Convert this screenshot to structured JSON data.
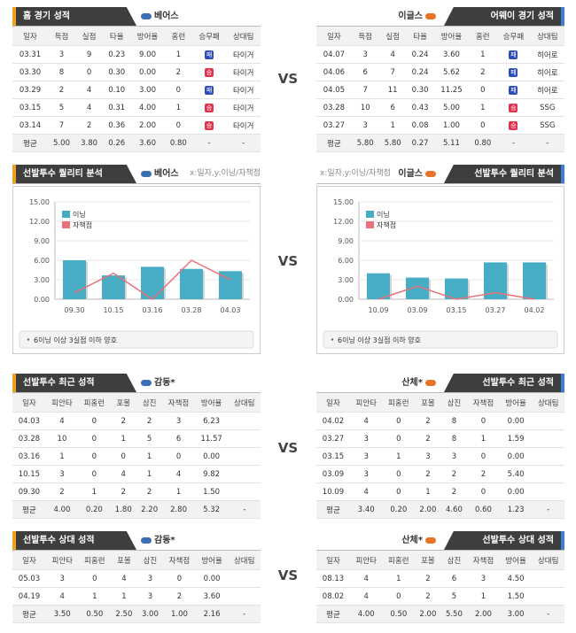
{
  "sections": [
    {
      "vs": "VS",
      "left": {
        "title": "홈 경기 성적",
        "team": "베어스",
        "columns": [
          "일자",
          "득점",
          "실점",
          "타율",
          "방어율",
          "홈런",
          "승무패",
          "상대팀"
        ],
        "rows": [
          [
            "03.31",
            "3",
            "9",
            "0.23",
            "9.00",
            "1",
            "패",
            "타이거"
          ],
          [
            "03.30",
            "8",
            "0",
            "0.30",
            "0.00",
            "2",
            "승",
            "타이거"
          ],
          [
            "03.29",
            "2",
            "4",
            "0.10",
            "3.00",
            "0",
            "패",
            "타이거"
          ],
          [
            "03.15",
            "5",
            "4",
            "0.31",
            "4.00",
            "1",
            "승",
            "타이거"
          ],
          [
            "03.14",
            "7",
            "2",
            "0.36",
            "2.00",
            "0",
            "승",
            "타이거"
          ]
        ],
        "average": [
          "평균",
          "5.00",
          "3.80",
          "0.26",
          "3.60",
          "0.80",
          "-",
          "-"
        ]
      },
      "right": {
        "title": "어웨이 경기 성적",
        "team": "이글스",
        "columns": [
          "일자",
          "득점",
          "실점",
          "타율",
          "방어율",
          "홈런",
          "승무패",
          "상대팀"
        ],
        "rows": [
          [
            "04.07",
            "3",
            "4",
            "0.24",
            "3.60",
            "1",
            "패",
            "히어로"
          ],
          [
            "04.06",
            "6",
            "7",
            "0.24",
            "5.62",
            "2",
            "패",
            "히어로"
          ],
          [
            "04.05",
            "7",
            "11",
            "0.30",
            "11.25",
            "0",
            "패",
            "히어로"
          ],
          [
            "03.28",
            "10",
            "6",
            "0.43",
            "5.00",
            "1",
            "승",
            "SSG"
          ],
          [
            "03.27",
            "3",
            "1",
            "0.08",
            "1.00",
            "0",
            "승",
            "SSG"
          ]
        ],
        "average": [
          "평균",
          "5.80",
          "5.80",
          "0.27",
          "5.11",
          "0.80",
          "-",
          "-"
        ]
      }
    },
    {
      "vs": "VS",
      "left": {
        "title": "선발투수 최근 성적",
        "team": "감동*",
        "columns": [
          "일자",
          "피안타",
          "피홈런",
          "포볼",
          "삼진",
          "자책점",
          "방어율",
          "상대팀"
        ],
        "rows": [
          [
            "04.03",
            "4",
            "0",
            "2",
            "2",
            "3",
            "6.23"
          ],
          [
            "03.28",
            "10",
            "0",
            "1",
            "5",
            "6",
            "11.57"
          ],
          [
            "03.16",
            "1",
            "0",
            "0",
            "1",
            "0",
            "0.00"
          ],
          [
            "10.15",
            "3",
            "0",
            "4",
            "1",
            "4",
            "9.82"
          ],
          [
            "09.30",
            "2",
            "1",
            "2",
            "2",
            "1",
            "1.50"
          ]
        ],
        "average": [
          "평균",
          "4.00",
          "0.20",
          "1.80",
          "2.20",
          "2.80",
          "5.32",
          "-"
        ]
      },
      "right": {
        "title": "선발투수 최근 성적",
        "team": "산체*",
        "columns": [
          "일자",
          "피안타",
          "피홈런",
          "포볼",
          "삼진",
          "자책점",
          "방어율",
          "상대팀"
        ],
        "rows": [
          [
            "04.02",
            "4",
            "0",
            "2",
            "8",
            "0",
            "0.00"
          ],
          [
            "03.27",
            "3",
            "0",
            "2",
            "8",
            "1",
            "1.59"
          ],
          [
            "03.15",
            "3",
            "1",
            "3",
            "3",
            "0",
            "0.00"
          ],
          [
            "03.09",
            "3",
            "0",
            "2",
            "2",
            "2",
            "5.40"
          ],
          [
            "10.09",
            "4",
            "0",
            "1",
            "2",
            "0",
            "0.00"
          ]
        ],
        "average": [
          "평균",
          "3.40",
          "0.20",
          "2.00",
          "4.60",
          "0.60",
          "1.23",
          "-"
        ]
      }
    },
    {
      "vs": "VS",
      "left": {
        "title": "선발투수 상대 성적",
        "team": "감동*",
        "columns": [
          "일자",
          "피안타",
          "피홈런",
          "포볼",
          "삼진",
          "자책점",
          "방어율",
          "상대팀"
        ],
        "rows": [
          [
            "05.03",
            "3",
            "0",
            "4",
            "3",
            "0",
            "0.00"
          ],
          [
            "04.19",
            "4",
            "1",
            "1",
            "3",
            "2",
            "3.60"
          ]
        ],
        "average": [
          "평균",
          "3.50",
          "0.50",
          "2.50",
          "3.00",
          "1.00",
          "2.16",
          "-"
        ]
      },
      "right": {
        "title": "선발투수 상대 성적",
        "team": "산체*",
        "columns": [
          "일자",
          "피안타",
          "피홈런",
          "포볼",
          "삼진",
          "자책점",
          "방어율",
          "상대팀"
        ],
        "rows": [
          [
            "08.13",
            "4",
            "1",
            "2",
            "6",
            "3",
            "4.50"
          ],
          [
            "08.02",
            "4",
            "0",
            "2",
            "5",
            "1",
            "1.50"
          ]
        ],
        "average": [
          "평균",
          "4.00",
          "0.50",
          "2.00",
          "5.50",
          "2.00",
          "3.00",
          "-"
        ]
      }
    }
  ],
  "quality": {
    "vs": "VS",
    "left": {
      "title": "선발투수 퀄리티 분석",
      "team": "베어스",
      "axis_note": "x:일자,y:이닝/자책점"
    },
    "right": {
      "title": "선발투수 퀄리티 분석",
      "team": "이글스",
      "axis_note": "x:일자,y:이닝/자책점"
    }
  },
  "chart_data": [
    {
      "type": "bar",
      "categories": [
        "09.30",
        "10.15",
        "03.16",
        "03.28",
        "04.03"
      ],
      "series": [
        {
          "name": "이닝",
          "color": "#46adc4",
          "values": [
            6,
            3.67,
            5,
            4.67,
            4.33
          ]
        },
        {
          "name": "자책점",
          "color": "#e8727b",
          "type": "line",
          "values": [
            1,
            4,
            0,
            6,
            3
          ]
        }
      ],
      "ylim": [
        0,
        15
      ],
      "yticks": [
        {
          "value": 0,
          "label": "0.00"
        },
        {
          "value": 3,
          "label": "3.00"
        },
        {
          "value": 6,
          "label": "6.00"
        },
        {
          "value": 9,
          "label": "9.00"
        },
        {
          "value": 12,
          "label": "12.00"
        },
        {
          "value": 15,
          "label": "15.00"
        }
      ],
      "grid": true,
      "legend": "upper left",
      "note": "6이닝 이상 3실점 이하 양호"
    },
    {
      "type": "bar",
      "categories": [
        "10.09",
        "03.09",
        "03.15",
        "03.27",
        "04.02"
      ],
      "series": [
        {
          "name": "이닝",
          "color": "#46adc4",
          "values": [
            4,
            3.33,
            3.2,
            5.67,
            5.67
          ]
        },
        {
          "name": "자책점",
          "color": "#e8727b",
          "type": "line",
          "values": [
            0,
            2,
            0,
            1,
            0
          ]
        }
      ],
      "ylim": [
        0,
        15
      ],
      "yticks": [
        {
          "value": 0,
          "label": "0.00"
        },
        {
          "value": 3,
          "label": "3.00"
        },
        {
          "value": 6,
          "label": "6.00"
        },
        {
          "value": 9,
          "label": "9.00"
        },
        {
          "value": 12,
          "label": "12.00"
        },
        {
          "value": 15,
          "label": "15.00"
        }
      ],
      "grid": true,
      "legend": "upper left",
      "note": "6이닝 이상 3실점 이하 양호"
    }
  ]
}
